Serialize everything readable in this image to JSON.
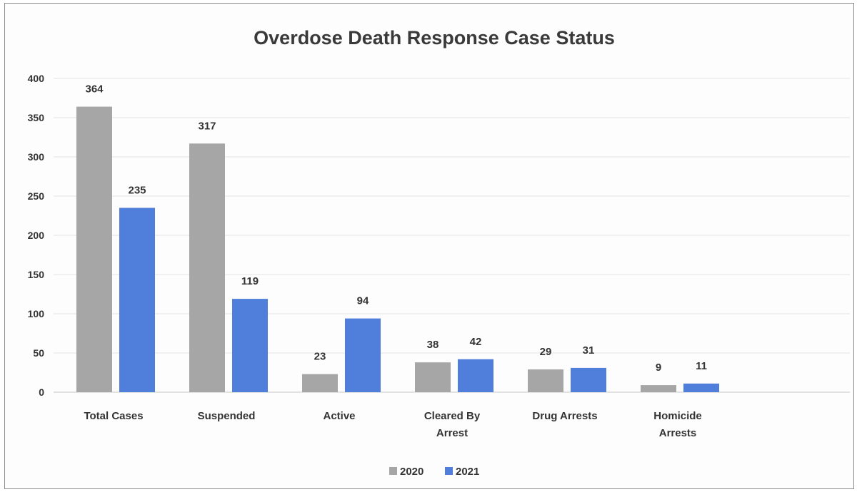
{
  "chart_data": {
    "type": "bar",
    "title": "Overdose Death Response Case Status",
    "categories": [
      [
        "Total Cases"
      ],
      [
        "Suspended"
      ],
      [
        "Active"
      ],
      [
        "Cleared By",
        "Arrest"
      ],
      [
        "Drug Arrests"
      ],
      [
        "Homicide",
        "Arrests"
      ]
    ],
    "series": [
      {
        "name": "2020",
        "values": [
          364,
          317,
          23,
          38,
          29,
          9
        ],
        "color": "#a6a6a6"
      },
      {
        "name": "2021",
        "values": [
          235,
          119,
          94,
          42,
          31,
          11
        ],
        "color": "#4f7fdb"
      }
    ],
    "ylim": [
      0,
      400
    ],
    "yticks": [
      "0",
      "50",
      "100",
      "150",
      "200",
      "250",
      "300",
      "350",
      "400"
    ],
    "grid": true,
    "legend": "bottom-center"
  }
}
